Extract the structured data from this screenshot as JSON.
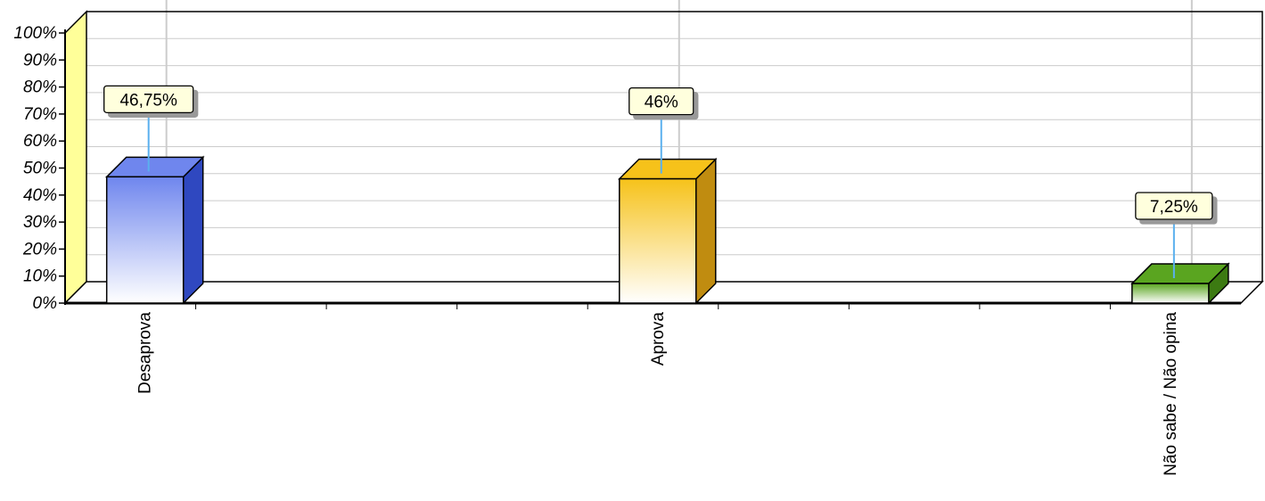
{
  "chart_data": {
    "type": "bar",
    "categories": [
      "Desaprova",
      "Aprova",
      "Não sabe / Não opina"
    ],
    "values": [
      46.75,
      46,
      7.25
    ],
    "data_labels": [
      "46,75%",
      "46%",
      "7,25%"
    ],
    "title": "",
    "xlabel": "",
    "ylabel": "",
    "ylim": [
      0,
      100
    ],
    "y_ticks": [
      0,
      10,
      20,
      30,
      40,
      50,
      60,
      70,
      80,
      90,
      100
    ],
    "y_tick_labels": [
      "0%",
      "10%",
      "20%",
      "30%",
      "40%",
      "50%",
      "60%",
      "70%",
      "80%",
      "90%",
      "100%"
    ],
    "grid": true,
    "style": "3d",
    "colors": {
      "bars": [
        "#6f86ee",
        "#f6c21a",
        "#5aa520"
      ],
      "bars_dark": [
        "#2f48c0",
        "#c08c10",
        "#3c7a12"
      ],
      "wall": "#ffff99",
      "label_box": "#ffffdd",
      "leader": "#5ab0ee",
      "grid": "#cccccc"
    }
  }
}
